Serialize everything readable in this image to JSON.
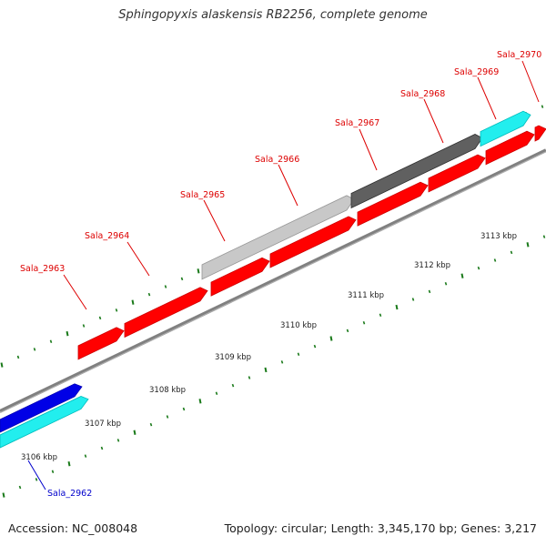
{
  "title": "Sphingopyxis alaskensis RB2256, complete genome",
  "footer": {
    "accession": "Accession: NC_008048",
    "summary": "Topology: circular; Length: 3,345,170 bp; Genes: 3,217"
  },
  "colors": {
    "red_gene": "#ff0000",
    "blue_gene": "#0000e6",
    "cyan_gene": "#22eeee",
    "light_gray_gene": "#c8c8c8",
    "dark_gray_gene": "#606060",
    "backbone": "#808080",
    "tick": "#1a7a1a",
    "label_red": "#dd0000",
    "label_blue": "#0000cc"
  },
  "scale_labels": [
    "3106 kbp",
    "3107 kbp",
    "3108 kbp",
    "3109 kbp",
    "3110 kbp",
    "3111 kbp",
    "3112 kbp",
    "3113 kbp"
  ],
  "gene_labels": [
    {
      "text": "Sala_2962",
      "color": "blue"
    },
    {
      "text": "Sala_2963",
      "color": "red"
    },
    {
      "text": "Sala_2964",
      "color": "red"
    },
    {
      "text": "Sala_2965",
      "color": "red"
    },
    {
      "text": "Sala_2966",
      "color": "red"
    },
    {
      "text": "Sala_2967",
      "color": "red"
    },
    {
      "text": "Sala_2968",
      "color": "red"
    },
    {
      "text": "Sala_2969",
      "color": "red"
    },
    {
      "text": "Sala_2970",
      "color": "red"
    }
  ]
}
